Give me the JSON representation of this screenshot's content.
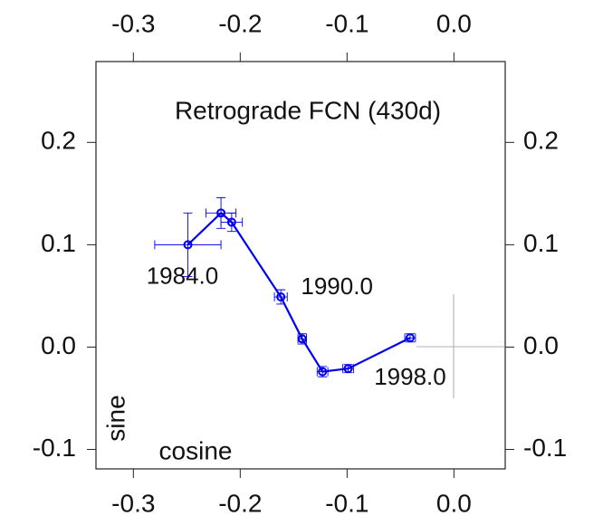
{
  "chart_data": {
    "type": "scatter",
    "title": "Retrograde FCN (430d)",
    "x_label": "cosine",
    "y_label": "sine",
    "xlim": [
      -0.335,
      0.048
    ],
    "ylim": [
      -0.119,
      0.279
    ],
    "xticks": [
      -0.3,
      -0.2,
      -0.1,
      {
        "value": 0,
        "label": "0.0"
      }
    ],
    "yticks": [
      -0.1,
      {
        "value": 0,
        "label": "0.0"
      },
      0.1,
      0.2
    ],
    "annotations": [
      "1984.0",
      "1990.0",
      "1998.0"
    ],
    "series": [
      {
        "color": "#0000ee",
        "x": [
          -0.249,
          -0.218,
          -0.208,
          -0.162,
          -0.142,
          -0.123,
          -0.099,
          -0.041
        ],
        "values": [
          0.1,
          0.131,
          0.122,
          0.049,
          0.008,
          -0.024,
          -0.021,
          0.009
        ],
        "xerr": [
          0.031,
          0.014,
          0.01,
          0.006,
          0.004,
          0.005,
          0.005,
          0.005
        ],
        "yerr": [
          0.031,
          0.015,
          0.009,
          0.007,
          0.005,
          0.005,
          0.004,
          0.004
        ]
      }
    ]
  }
}
